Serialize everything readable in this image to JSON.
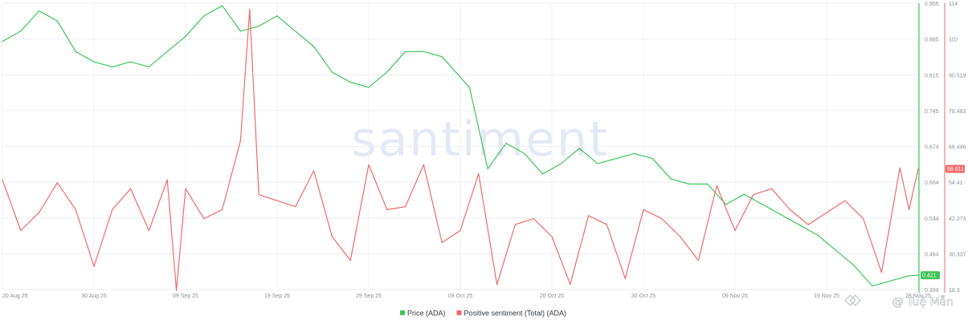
{
  "chart_data": {
    "type": "line",
    "watermark": "santiment",
    "x_ticks": [
      "20 Aug 25",
      "30 Aug 25",
      "09 Sep 25",
      "19 Sep 25",
      "29 Sep 25",
      "09 Oct 25",
      "20 Oct 25",
      "30 Oct 25",
      "09 Nov 25",
      "19 Nov 25",
      "28 Nov 25"
    ],
    "x_range": [
      "2025-08-20",
      "2025-11-28"
    ],
    "price_axis": {
      "ticks": [
        "0.955",
        "0.885",
        "0.815",
        "0.745",
        "0.674",
        "0.604",
        "0.534",
        "0.464",
        "0.393"
      ],
      "ylim": [
        0.393,
        0.955
      ]
    },
    "sentiment_axis": {
      "ticks": [
        "114",
        "102",
        "90.519",
        "78.483",
        "66.446",
        "54.41",
        "42.373",
        "30.337",
        "18.3"
      ],
      "ylim": [
        18.3,
        114
      ]
    },
    "series": [
      {
        "name": "Price (ADA)",
        "axis": "price",
        "color": "#3cc658",
        "last_label": "0.421",
        "x": [
          "2025-08-20",
          "2025-08-22",
          "2025-08-24",
          "2025-08-26",
          "2025-08-28",
          "2025-08-30",
          "2025-09-01",
          "2025-09-03",
          "2025-09-05",
          "2025-09-07",
          "2025-09-09",
          "2025-09-11",
          "2025-09-13",
          "2025-09-15",
          "2025-09-17",
          "2025-09-19",
          "2025-09-21",
          "2025-09-23",
          "2025-09-25",
          "2025-09-27",
          "2025-09-29",
          "2025-10-01",
          "2025-10-03",
          "2025-10-05",
          "2025-10-07",
          "2025-10-09",
          "2025-10-10",
          "2025-10-12",
          "2025-10-14",
          "2025-10-16",
          "2025-10-18",
          "2025-10-20",
          "2025-10-22",
          "2025-10-24",
          "2025-10-26",
          "2025-10-28",
          "2025-10-30",
          "2025-11-01",
          "2025-11-03",
          "2025-11-05",
          "2025-11-07",
          "2025-11-09",
          "2025-11-11",
          "2025-11-13",
          "2025-11-15",
          "2025-11-17",
          "2025-11-19",
          "2025-11-21",
          "2025-11-23",
          "2025-11-25",
          "2025-11-27",
          "2025-11-28"
        ],
        "values": [
          0.88,
          0.9,
          0.94,
          0.92,
          0.86,
          0.84,
          0.83,
          0.84,
          0.83,
          0.86,
          0.89,
          0.93,
          0.95,
          0.9,
          0.91,
          0.93,
          0.9,
          0.87,
          0.82,
          0.8,
          0.79,
          0.82,
          0.86,
          0.86,
          0.85,
          0.81,
          0.79,
          0.63,
          0.68,
          0.66,
          0.62,
          0.64,
          0.67,
          0.64,
          0.65,
          0.66,
          0.65,
          0.61,
          0.6,
          0.6,
          0.56,
          0.58,
          0.56,
          0.54,
          0.52,
          0.5,
          0.47,
          0.44,
          0.4,
          0.41,
          0.42,
          0.421
        ]
      },
      {
        "name": "Positive sentiment (Total) (ADA)",
        "axis": "sentiment",
        "color": "#f26a6a",
        "last_label": "58.611",
        "x": [
          "2025-08-20",
          "2025-08-22",
          "2025-08-24",
          "2025-08-26",
          "2025-08-28",
          "2025-08-30",
          "2025-09-01",
          "2025-09-03",
          "2025-09-05",
          "2025-09-07",
          "2025-09-08",
          "2025-09-09",
          "2025-09-11",
          "2025-09-13",
          "2025-09-15",
          "2025-09-16",
          "2025-09-17",
          "2025-09-19",
          "2025-09-21",
          "2025-09-23",
          "2025-09-25",
          "2025-09-27",
          "2025-09-29",
          "2025-10-01",
          "2025-10-03",
          "2025-10-05",
          "2025-10-07",
          "2025-10-09",
          "2025-10-11",
          "2025-10-13",
          "2025-10-15",
          "2025-10-17",
          "2025-10-19",
          "2025-10-21",
          "2025-10-23",
          "2025-10-25",
          "2025-10-27",
          "2025-10-29",
          "2025-10-31",
          "2025-11-02",
          "2025-11-04",
          "2025-11-06",
          "2025-11-08",
          "2025-11-10",
          "2025-11-12",
          "2025-11-14",
          "2025-11-16",
          "2025-11-18",
          "2025-11-20",
          "2025-11-22",
          "2025-11-24",
          "2025-11-26",
          "2025-11-27",
          "2025-11-28"
        ],
        "values": [
          55,
          38,
          44,
          54,
          45,
          26,
          45,
          52,
          38,
          55,
          18,
          52,
          42,
          45,
          68,
          112,
          50,
          48,
          46,
          58,
          36,
          28,
          60,
          45,
          46,
          60,
          34,
          38,
          57,
          20,
          40,
          42,
          36,
          20,
          43,
          40,
          22,
          45,
          42,
          36,
          28,
          53,
          38,
          50,
          52,
          45,
          40,
          44,
          48,
          42,
          24,
          59,
          45,
          58.611
        ]
      }
    ],
    "legend": [
      {
        "label": "Price (ADA)",
        "color": "#3cc658"
      },
      {
        "label": "Positive sentiment (Total) (ADA)",
        "color": "#f26a6a"
      }
    ],
    "legend_position": "bottom-center",
    "grid": true,
    "overlay_text": "@ Tuệ Mẫn"
  }
}
